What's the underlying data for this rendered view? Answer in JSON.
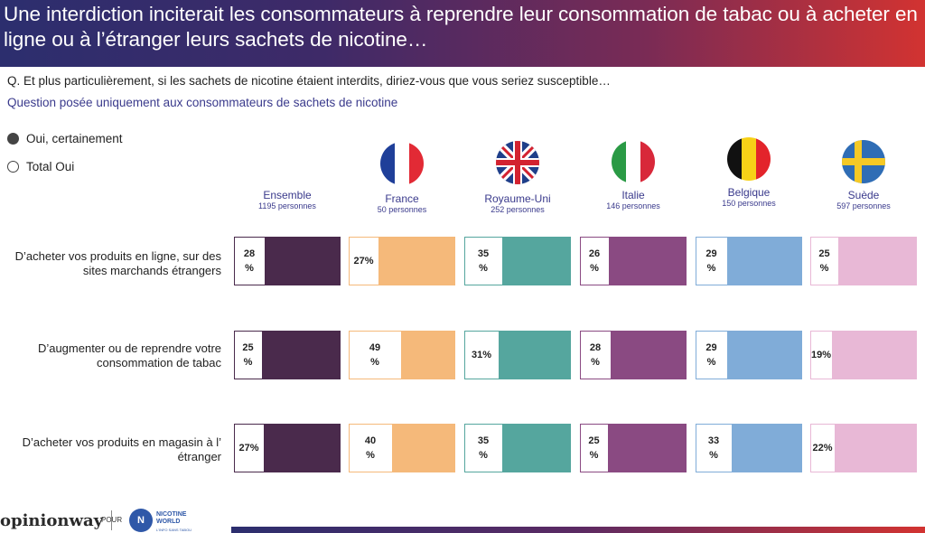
{
  "title": "Une interdiction inciterait les consommateurs à reprendre leur consommation de tabac ou à acheter en ligne ou à l’étranger leurs sachets de nicotine…",
  "question": "Q. Et plus particulièrement, si les sachets de nicotine étaient interdits, diriez-vous que vous seriez susceptible…",
  "subquestion": "Question posée uniquement aux consommateurs de sachets de nicotine",
  "legend": {
    "filled": "Oui, certainement",
    "hollow": "Total Oui"
  },
  "footer": {
    "logo": "opinionway",
    "pour": "POUR",
    "nw_mark": "N",
    "nw_line1": "NICOTINE",
    "nw_line2": "WORLD",
    "nw_tag": "L'INFO SANS TABOU"
  },
  "chart_data": {
    "type": "bar",
    "columns": [
      {
        "name": "Ensemble",
        "sample": "1195 personnes",
        "color": "#4a2a4c",
        "flag": null
      },
      {
        "name": "France",
        "sample": "50 personnes",
        "color": "#f5b97a",
        "flag": "france"
      },
      {
        "name": "Royaume-Uni",
        "sample": "252 personnes",
        "color": "#55a69e",
        "flag": "uk"
      },
      {
        "name": "Italie",
        "sample": "146 personnes",
        "color": "#8a4a82",
        "flag": "italy"
      },
      {
        "name": "Belgique",
        "sample": "150 personnes",
        "color": "#80acd8",
        "flag": "belgium"
      },
      {
        "name": "Suède",
        "sample": "597 personnes",
        "color": "#e8b8d6",
        "flag": "sweden"
      }
    ],
    "rows": [
      {
        "label": "D’acheter vos produits en ligne, sur des sites marchands étrangers",
        "values": [
          28,
          27,
          35,
          26,
          29,
          25
        ],
        "labels": [
          "28 %",
          "27%",
          "35 %",
          "26 %",
          "29 %",
          "25 %"
        ]
      },
      {
        "label": "D’augmenter ou de reprendre votre consommation de tabac",
        "values": [
          25,
          49,
          31,
          28,
          29,
          19
        ],
        "labels": [
          "25 %",
          "49 %",
          "31%",
          "28 %",
          "29 %",
          "19%"
        ]
      },
      {
        "label": "D’acheter vos produits en magasin à l’ étranger",
        "values": [
          27,
          40,
          35,
          25,
          33,
          22
        ],
        "labels": [
          "27%",
          "40 %",
          "35 %",
          "25 %",
          "33 %",
          "22%"
        ]
      }
    ]
  }
}
